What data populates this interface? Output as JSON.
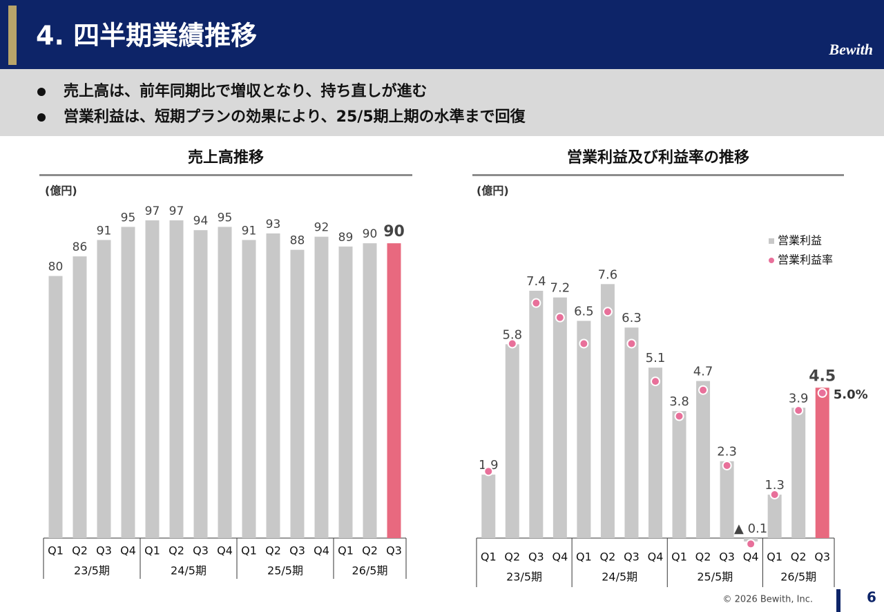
{
  "header": {
    "title": "4. 四半期業績推移",
    "logo": "Bewith"
  },
  "bullets": [
    "売上高は、前年同期比で増収となり、持ち直しが進む",
    "営業利益は、短期プランの効果により、25/5期上期の水準まで回復"
  ],
  "chart_data": [
    {
      "type": "bar",
      "title": "売上高推移",
      "y_label": "(億円)",
      "categories": [
        "Q1",
        "Q2",
        "Q3",
        "Q4",
        "Q1",
        "Q2",
        "Q3",
        "Q4",
        "Q1",
        "Q2",
        "Q3",
        "Q4",
        "Q1",
        "Q2",
        "Q3"
      ],
      "category_groups": [
        "23/5期",
        "24/5期",
        "25/5期",
        "26/5期"
      ],
      "values": [
        80,
        86,
        91,
        95,
        97,
        97,
        94,
        95,
        91,
        93,
        88,
        92,
        89,
        90,
        90
      ],
      "colors": [
        "#c8c8c8",
        "#c8c8c8",
        "#c8c8c8",
        "#c8c8c8",
        "#c8c8c8",
        "#c8c8c8",
        "#c8c8c8",
        "#c8c8c8",
        "#c8c8c8",
        "#c8c8c8",
        "#c8c8c8",
        "#c8c8c8",
        "#c8c8c8",
        "#c8c8c8",
        "#e8697f"
      ],
      "ylim": [
        0,
        101
      ]
    },
    {
      "type": "combo",
      "title": "営業利益及び利益率の推移",
      "y_label": "(億円)",
      "categories": [
        "Q1",
        "Q2",
        "Q3",
        "Q4",
        "Q1",
        "Q2",
        "Q3",
        "Q4",
        "Q1",
        "Q2",
        "Q3",
        "Q4",
        "Q1",
        "Q2",
        "Q3"
      ],
      "category_groups": [
        "23/5期",
        "24/5期",
        "25/5期",
        "26/5期"
      ],
      "legend": "upper right",
      "ylim": [
        0,
        9.9
      ],
      "y2lim": [
        0,
        11.4
      ],
      "series": [
        {
          "name": "営業利益",
          "type": "bar",
          "color": "#c8c8c8",
          "colors": [
            "#c8c8c8",
            "#c8c8c8",
            "#c8c8c8",
            "#c8c8c8",
            "#c8c8c8",
            "#c8c8c8",
            "#c8c8c8",
            "#c8c8c8",
            "#c8c8c8",
            "#c8c8c8",
            "#c8c8c8",
            "#c8c8c8",
            "#c8c8c8",
            "#c8c8c8",
            "#e8697f"
          ],
          "values": [
            1.9,
            5.8,
            7.4,
            7.2,
            6.5,
            7.6,
            6.3,
            5.1,
            3.8,
            4.7,
            2.3,
            -0.1,
            1.3,
            3.9,
            4.5
          ],
          "value_labels": [
            "1.9",
            "5.8",
            "7.4",
            "7.2",
            "6.5",
            "7.6",
            "6.3",
            "5.1",
            "3.8",
            "4.7",
            "2.3",
            "▲ 0.1",
            "1.3",
            "3.9",
            "4.5"
          ]
        },
        {
          "name": "営業利益率",
          "type": "scatter",
          "color": "#e8709a",
          "axis": "y2",
          "values": [
            2.3,
            6.7,
            8.1,
            7.6,
            6.7,
            7.8,
            6.7,
            5.4,
            4.2,
            5.1,
            2.5,
            -0.2,
            1.5,
            4.4,
            5.0
          ],
          "value_labels": [
            null,
            null,
            null,
            null,
            null,
            null,
            null,
            null,
            null,
            null,
            null,
            null,
            null,
            null,
            "5.0%"
          ]
        }
      ]
    }
  ],
  "footer": {
    "copyright": "© 2026 Bewith, Inc.",
    "page": "6"
  }
}
